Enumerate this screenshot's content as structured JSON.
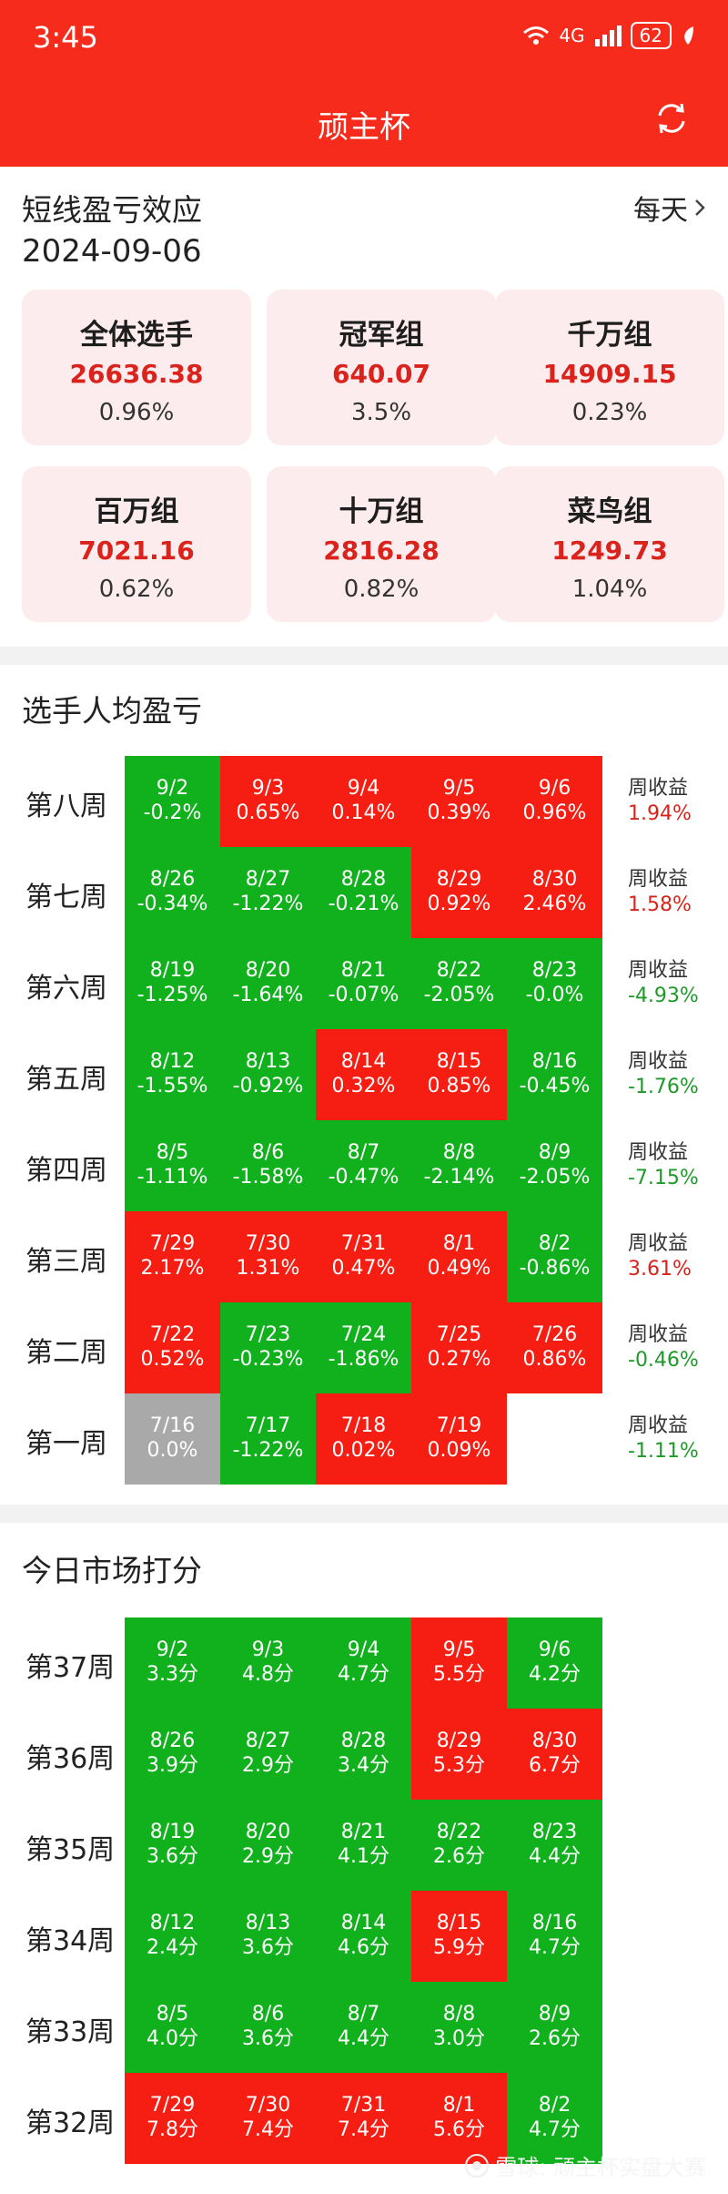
{
  "status": {
    "time": "3:45",
    "network": "4G",
    "battery": "62"
  },
  "app": {
    "title": "顽主杯"
  },
  "summary": {
    "title": "短线盈亏效应",
    "date": "2024-09-06",
    "period": "每天",
    "cards": [
      {
        "name": "全体选手",
        "value": "26636.38",
        "pct": "0.96%"
      },
      {
        "name": "冠军组",
        "value": "640.07",
        "pct": "3.5%"
      },
      {
        "name": "千万组",
        "value": "14909.15",
        "pct": "0.23%"
      },
      {
        "name": "百万组",
        "value": "7021.16",
        "pct": "0.62%"
      },
      {
        "name": "十万组",
        "value": "2816.28",
        "pct": "0.82%"
      },
      {
        "name": "菜鸟组",
        "value": "1249.73",
        "pct": "1.04%"
      }
    ]
  },
  "pnl": {
    "title": "选手人均盈亏",
    "weekly_label": "周收益",
    "colors": {
      "up": "#f61d12",
      "down": "#11b11e",
      "flat": "#a9a9a9",
      "up_text": "#d9231c",
      "down_text": "#1f9a2a"
    },
    "weeks": [
      {
        "name": "第八周",
        "ret": "1.94%",
        "dir": "up",
        "days": [
          {
            "d": "9/2",
            "v": "-0.2%",
            "c": "g"
          },
          {
            "d": "9/3",
            "v": "0.65%",
            "c": "r"
          },
          {
            "d": "9/4",
            "v": "0.14%",
            "c": "r"
          },
          {
            "d": "9/5",
            "v": "0.39%",
            "c": "r"
          },
          {
            "d": "9/6",
            "v": "0.96%",
            "c": "r"
          }
        ]
      },
      {
        "name": "第七周",
        "ret": "1.58%",
        "dir": "up",
        "days": [
          {
            "d": "8/26",
            "v": "-0.34%",
            "c": "g"
          },
          {
            "d": "8/27",
            "v": "-1.22%",
            "c": "g"
          },
          {
            "d": "8/28",
            "v": "-0.21%",
            "c": "g"
          },
          {
            "d": "8/29",
            "v": "0.92%",
            "c": "r"
          },
          {
            "d": "8/30",
            "v": "2.46%",
            "c": "r"
          }
        ]
      },
      {
        "name": "第六周",
        "ret": "-4.93%",
        "dir": "down",
        "days": [
          {
            "d": "8/19",
            "v": "-1.25%",
            "c": "g"
          },
          {
            "d": "8/20",
            "v": "-1.64%",
            "c": "g"
          },
          {
            "d": "8/21",
            "v": "-0.07%",
            "c": "g"
          },
          {
            "d": "8/22",
            "v": "-2.05%",
            "c": "g"
          },
          {
            "d": "8/23",
            "v": "-0.0%",
            "c": "g"
          }
        ]
      },
      {
        "name": "第五周",
        "ret": "-1.76%",
        "dir": "down",
        "days": [
          {
            "d": "8/12",
            "v": "-1.55%",
            "c": "g"
          },
          {
            "d": "8/13",
            "v": "-0.92%",
            "c": "g"
          },
          {
            "d": "8/14",
            "v": "0.32%",
            "c": "r"
          },
          {
            "d": "8/15",
            "v": "0.85%",
            "c": "r"
          },
          {
            "d": "8/16",
            "v": "-0.45%",
            "c": "g"
          }
        ]
      },
      {
        "name": "第四周",
        "ret": "-7.15%",
        "dir": "down",
        "days": [
          {
            "d": "8/5",
            "v": "-1.11%",
            "c": "g"
          },
          {
            "d": "8/6",
            "v": "-1.58%",
            "c": "g"
          },
          {
            "d": "8/7",
            "v": "-0.47%",
            "c": "g"
          },
          {
            "d": "8/8",
            "v": "-2.14%",
            "c": "g"
          },
          {
            "d": "8/9",
            "v": "-2.05%",
            "c": "g"
          }
        ]
      },
      {
        "name": "第三周",
        "ret": "3.61%",
        "dir": "up",
        "days": [
          {
            "d": "7/29",
            "v": "2.17%",
            "c": "r"
          },
          {
            "d": "7/30",
            "v": "1.31%",
            "c": "r"
          },
          {
            "d": "7/31",
            "v": "0.47%",
            "c": "r"
          },
          {
            "d": "8/1",
            "v": "0.49%",
            "c": "r"
          },
          {
            "d": "8/2",
            "v": "-0.86%",
            "c": "g"
          }
        ]
      },
      {
        "name": "第二周",
        "ret": "-0.46%",
        "dir": "down",
        "days": [
          {
            "d": "7/22",
            "v": "0.52%",
            "c": "r"
          },
          {
            "d": "7/23",
            "v": "-0.23%",
            "c": "g"
          },
          {
            "d": "7/24",
            "v": "-1.86%",
            "c": "g"
          },
          {
            "d": "7/25",
            "v": "0.27%",
            "c": "r"
          },
          {
            "d": "7/26",
            "v": "0.86%",
            "c": "r"
          }
        ]
      },
      {
        "name": "第一周",
        "ret": "-1.11%",
        "dir": "down",
        "days": [
          {
            "d": "7/16",
            "v": "0.0%",
            "c": "n"
          },
          {
            "d": "7/17",
            "v": "-1.22%",
            "c": "g"
          },
          {
            "d": "7/18",
            "v": "0.02%",
            "c": "r"
          },
          {
            "d": "7/19",
            "v": "0.09%",
            "c": "r"
          }
        ]
      }
    ]
  },
  "score": {
    "title": "今日市场打分",
    "weeks": [
      {
        "name": "第37周",
        "days": [
          {
            "d": "9/2",
            "v": "3.3分",
            "c": "g"
          },
          {
            "d": "9/3",
            "v": "4.8分",
            "c": "g"
          },
          {
            "d": "9/4",
            "v": "4.7分",
            "c": "g"
          },
          {
            "d": "9/5",
            "v": "5.5分",
            "c": "r"
          },
          {
            "d": "9/6",
            "v": "4.2分",
            "c": "g"
          }
        ]
      },
      {
        "name": "第36周",
        "days": [
          {
            "d": "8/26",
            "v": "3.9分",
            "c": "g"
          },
          {
            "d": "8/27",
            "v": "2.9分",
            "c": "g"
          },
          {
            "d": "8/28",
            "v": "3.4分",
            "c": "g"
          },
          {
            "d": "8/29",
            "v": "5.3分",
            "c": "r"
          },
          {
            "d": "8/30",
            "v": "6.7分",
            "c": "r"
          }
        ]
      },
      {
        "name": "第35周",
        "days": [
          {
            "d": "8/19",
            "v": "3.6分",
            "c": "g"
          },
          {
            "d": "8/20",
            "v": "2.9分",
            "c": "g"
          },
          {
            "d": "8/21",
            "v": "4.1分",
            "c": "g"
          },
          {
            "d": "8/22",
            "v": "2.6分",
            "c": "g"
          },
          {
            "d": "8/23",
            "v": "4.4分",
            "c": "g"
          }
        ]
      },
      {
        "name": "第34周",
        "days": [
          {
            "d": "8/12",
            "v": "2.4分",
            "c": "g"
          },
          {
            "d": "8/13",
            "v": "3.6分",
            "c": "g"
          },
          {
            "d": "8/14",
            "v": "4.6分",
            "c": "g"
          },
          {
            "d": "8/15",
            "v": "5.9分",
            "c": "r"
          },
          {
            "d": "8/16",
            "v": "4.7分",
            "c": "g"
          }
        ]
      },
      {
        "name": "第33周",
        "days": [
          {
            "d": "8/5",
            "v": "4.0分",
            "c": "g"
          },
          {
            "d": "8/6",
            "v": "3.6分",
            "c": "g"
          },
          {
            "d": "8/7",
            "v": "4.4分",
            "c": "g"
          },
          {
            "d": "8/8",
            "v": "3.0分",
            "c": "g"
          },
          {
            "d": "8/9",
            "v": "2.6分",
            "c": "g"
          }
        ]
      },
      {
        "name": "第32周",
        "days": [
          {
            "d": "7/29",
            "v": "7.8分",
            "c": "r"
          },
          {
            "d": "7/30",
            "v": "7.4分",
            "c": "r"
          },
          {
            "d": "7/31",
            "v": "7.4分",
            "c": "r"
          },
          {
            "d": "8/1",
            "v": "5.6分",
            "c": "r"
          },
          {
            "d": "8/2",
            "v": "4.7分",
            "c": "g"
          }
        ]
      }
    ]
  },
  "watermark": "雪球: 顽主杯实盘大赛"
}
